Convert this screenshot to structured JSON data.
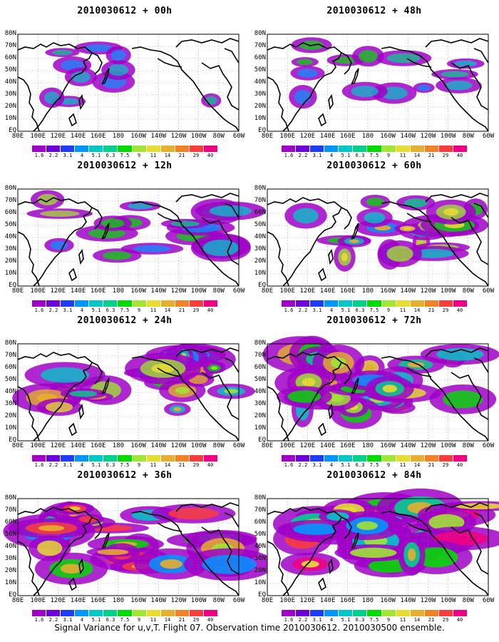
{
  "panels": [
    {
      "title": "2010030612 + 00h"
    },
    {
      "title": "2010030612 + 48h"
    },
    {
      "title": "2010030612 + 12h"
    },
    {
      "title": "2010030612 + 60h"
    },
    {
      "title": "2010030612 + 24h"
    },
    {
      "title": "2010030612 + 72h"
    },
    {
      "title": "2010030612 + 36h"
    },
    {
      "title": "2010030612 + 84h"
    }
  ],
  "map": {
    "lat_labels": [
      "80N",
      "70N",
      "60N",
      "50N",
      "40N",
      "30N",
      "20N",
      "10N",
      "EQ"
    ],
    "lon_labels": [
      "80E",
      "100E",
      "120E",
      "140E",
      "160E",
      "180",
      "160W",
      "140W",
      "120W",
      "100W",
      "80W",
      "60W"
    ]
  },
  "colorbar": {
    "labels": [
      "1.6",
      "2.2",
      "3.1",
      "4",
      "5.1",
      "6.3",
      "7.5",
      "9",
      "11",
      "14",
      "21",
      "29",
      "40"
    ],
    "colors": [
      "#a000c8",
      "#6e00dc",
      "#1e3cff",
      "#0096ff",
      "#00c8c8",
      "#00d28c",
      "#00dc00",
      "#a0e632",
      "#e6dc32",
      "#e6af2d",
      "#f08228",
      "#fa3c3c",
      "#f00082"
    ]
  },
  "caption": "Signal Variance for u,v,T. Flight 07. Observation time 2010030612. 2010030500 ensemble."
}
